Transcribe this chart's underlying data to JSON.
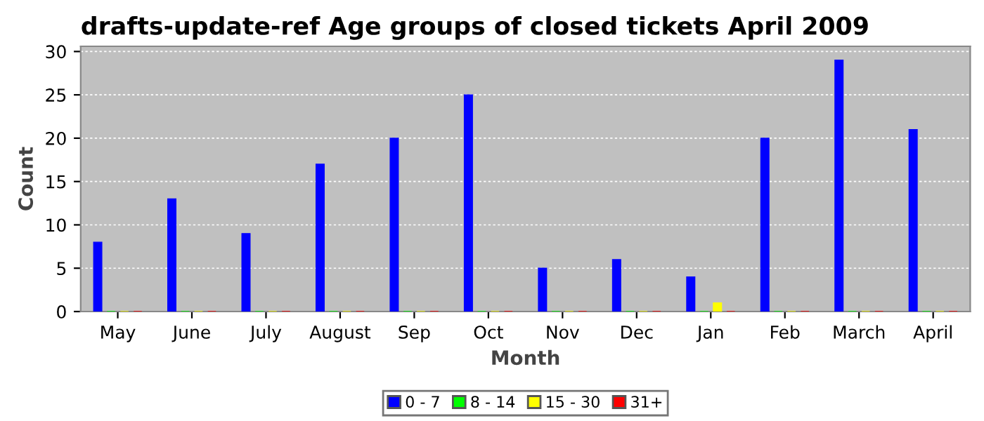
{
  "chart_data": {
    "type": "bar",
    "title": "drafts-update-ref Age groups of closed tickets April 2009",
    "xlabel": "Month",
    "ylabel": "Count",
    "categories": [
      "May",
      "June",
      "July",
      "August",
      "Sep",
      "Oct",
      "Nov",
      "Dec",
      "Jan",
      "Feb",
      "March",
      "April"
    ],
    "series": [
      {
        "name": "0 - 7",
        "color": "#0000ff",
        "values": [
          8,
          13,
          9,
          17,
          20,
          25,
          5,
          6,
          4,
          20,
          29,
          21
        ]
      },
      {
        "name": "8 - 14",
        "color": "#00ff00",
        "values": [
          0,
          0,
          0,
          0,
          0,
          0,
          0,
          0,
          0,
          0,
          0,
          0
        ]
      },
      {
        "name": "15 - 30",
        "color": "#ffff00",
        "values": [
          0,
          0,
          0,
          0,
          0,
          0,
          0,
          0,
          1,
          0,
          0,
          0
        ]
      },
      {
        "name": "31+",
        "color": "#ff0000",
        "values": [
          0,
          0,
          0,
          0,
          0,
          0,
          0,
          0,
          0,
          0,
          0,
          0
        ]
      }
    ],
    "ylim": [
      0,
      30.6
    ],
    "yticks": [
      0,
      5,
      10,
      15,
      20,
      25,
      30
    ],
    "grid": "y",
    "legend": "bottom"
  }
}
